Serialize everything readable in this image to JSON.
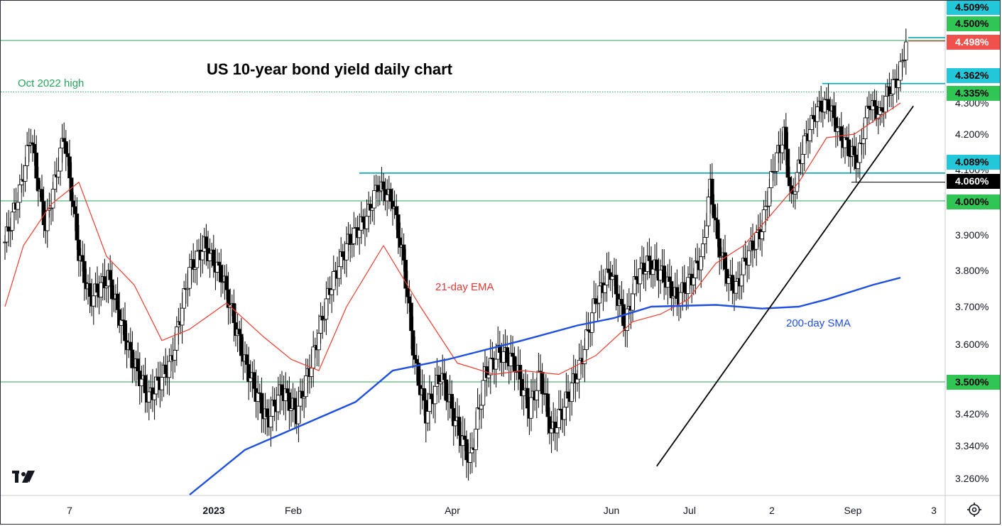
{
  "chart_data": {
    "type": "candlestick",
    "title": "US 10-year bond yield daily chart",
    "xlabel": "",
    "ylabel": "",
    "ylim": [
      3.22,
      4.52
    ],
    "y_ticks": [
      "3.260%",
      "3.340%",
      "3.420%",
      "3.500%",
      "3.600%",
      "3.700%",
      "3.800%",
      "3.900%",
      "4.000%",
      "4.100%",
      "4.200%",
      "4.300%"
    ],
    "x_ticks": [
      "7",
      "2023",
      "Feb",
      "Apr",
      "Jun",
      "Jul",
      "2",
      "Sep",
      "3"
    ],
    "series": [
      {
        "name": "21-day EMA",
        "color": "#ef3b2c",
        "values": [
          [
            0,
            3.7
          ],
          [
            10,
            3.87
          ],
          [
            25,
            3.99
          ],
          [
            40,
            4.06
          ],
          [
            55,
            3.84
          ],
          [
            70,
            3.76
          ],
          [
            85,
            3.61
          ],
          [
            100,
            3.64
          ],
          [
            120,
            3.71
          ],
          [
            140,
            3.62
          ],
          [
            155,
            3.56
          ],
          [
            170,
            3.53
          ],
          [
            185,
            3.7
          ],
          [
            205,
            3.87
          ],
          [
            225,
            3.7
          ],
          [
            245,
            3.55
          ],
          [
            265,
            3.52
          ],
          [
            280,
            3.53
          ],
          [
            300,
            3.52
          ],
          [
            320,
            3.57
          ],
          [
            340,
            3.66
          ],
          [
            355,
            3.68
          ],
          [
            370,
            3.72
          ],
          [
            385,
            3.82
          ],
          [
            400,
            3.87
          ],
          [
            415,
            3.96
          ],
          [
            430,
            4.06
          ],
          [
            445,
            4.19
          ],
          [
            460,
            4.2
          ],
          [
            475,
            4.26
          ],
          [
            485,
            4.3
          ]
        ]
      },
      {
        "name": "200-day SMA",
        "color": "#1f4fe0",
        "values": [
          [
            100,
            3.22
          ],
          [
            130,
            3.33
          ],
          [
            160,
            3.39
          ],
          [
            190,
            3.45
          ],
          [
            210,
            3.53
          ],
          [
            240,
            3.56
          ],
          [
            280,
            3.61
          ],
          [
            310,
            3.65
          ],
          [
            330,
            3.67
          ],
          [
            350,
            3.7
          ],
          [
            385,
            3.705
          ],
          [
            410,
            3.695
          ],
          [
            430,
            3.7
          ],
          [
            445,
            3.72
          ],
          [
            470,
            3.76
          ],
          [
            485,
            3.78
          ]
        ]
      }
    ],
    "horizontal_lines": [
      {
        "label": "Oct 2022 high",
        "value": 4.335,
        "style": "dotted",
        "color": "#26a65b"
      },
      {
        "value": 4.5,
        "style": "solid",
        "color": "#26a65b"
      },
      {
        "value": 4.0,
        "style": "solid",
        "color": "#26a65b"
      },
      {
        "value": 3.5,
        "style": "solid",
        "color": "#26a65b"
      },
      {
        "value": 4.089,
        "style": "solid",
        "color": "#00a8b5"
      },
      {
        "value": 4.362,
        "style": "solid",
        "color": "#00a8b5"
      },
      {
        "value": 4.06,
        "style": "solid",
        "color": "#000000"
      },
      {
        "value": 4.498,
        "style": "solid",
        "color": "#e53935"
      },
      {
        "value": 4.509,
        "style": "solid",
        "color": "#00a8b5"
      }
    ],
    "price_tags": [
      {
        "text": "4.509%",
        "value": 4.509,
        "bg": "#22c8d9",
        "fg": "#000000"
      },
      {
        "text": "4.500%",
        "value": 4.5,
        "bg": "#31c553",
        "fg": "#000000"
      },
      {
        "text": "4.498%",
        "value": 4.498,
        "bg": "#f0514c",
        "fg": "#ffffff"
      },
      {
        "text": "4.362%",
        "value": 4.362,
        "bg": "#22c8d9",
        "fg": "#000000"
      },
      {
        "text": "4.335%",
        "value": 4.335,
        "bg": "#31c553",
        "fg": "#000000"
      },
      {
        "text": "4.089%",
        "value": 4.089,
        "bg": "#22c8d9",
        "fg": "#000000"
      },
      {
        "text": "4.060%",
        "value": 4.06,
        "bg": "#000000",
        "fg": "#ffffff"
      },
      {
        "text": "4.000%",
        "value": 4.0,
        "bg": "#31c553",
        "fg": "#000000"
      },
      {
        "text": "3.500%",
        "value": 3.5,
        "bg": "#31c553",
        "fg": "#000000"
      }
    ],
    "annotations": [
      {
        "text": "Oct 2022 high",
        "color": "#26a65b"
      },
      {
        "text": "21-day EMA",
        "color": "#e53935"
      },
      {
        "text": "200-day SMA",
        "color": "#1f4fe0"
      }
    ],
    "trendline": {
      "from": [
        353,
        3.29
      ],
      "to": [
        492,
        4.29
      ],
      "color": "#000000"
    }
  }
}
